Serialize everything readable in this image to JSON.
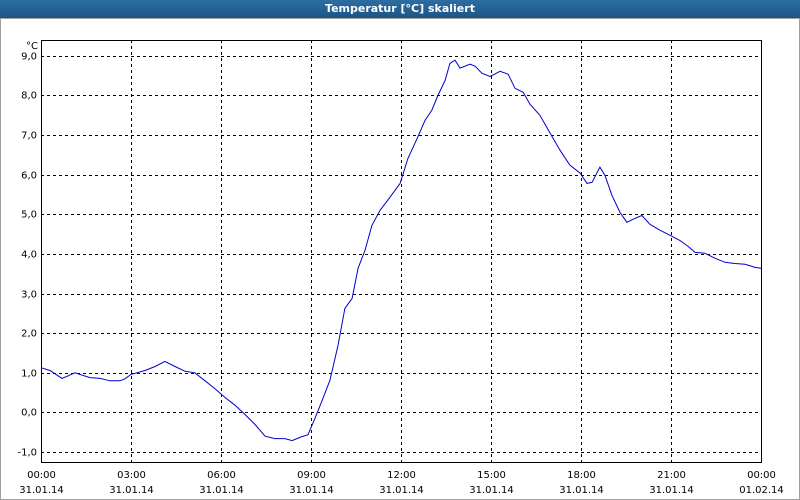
{
  "chart_data": {
    "type": "line",
    "title": "Temperatur [°C] skaliert",
    "y_unit": "°C",
    "ylim": [
      -1.25,
      9.4
    ],
    "yticks": [
      {
        "value": -1,
        "label": "-1,0"
      },
      {
        "value": 0,
        "label": "0,0"
      },
      {
        "value": 1,
        "label": "1,0"
      },
      {
        "value": 2,
        "label": "2,0"
      },
      {
        "value": 3,
        "label": "3,0"
      },
      {
        "value": 4,
        "label": "4,0"
      },
      {
        "value": 5,
        "label": "5,0"
      },
      {
        "value": 6,
        "label": "6,0"
      },
      {
        "value": 7,
        "label": "7,0"
      },
      {
        "value": 8,
        "label": "8,0"
      },
      {
        "value": 9,
        "label": "9,0"
      }
    ],
    "xlim": [
      0,
      24
    ],
    "xticks": [
      {
        "value": 0,
        "label": "00:00",
        "date": "31.01.14"
      },
      {
        "value": 3,
        "label": "03:00",
        "date": "31.01.14"
      },
      {
        "value": 6,
        "label": "06:00",
        "date": "31.01.14"
      },
      {
        "value": 9,
        "label": "09:00",
        "date": "31.01.14"
      },
      {
        "value": 12,
        "label": "12:00",
        "date": "31.01.14"
      },
      {
        "value": 15,
        "label": "15:00",
        "date": "31.01.14"
      },
      {
        "value": 18,
        "label": "18:00",
        "date": "31.01.14"
      },
      {
        "value": 21,
        "label": "21:00",
        "date": "31.01.14"
      },
      {
        "value": 24,
        "label": "00:00",
        "date": "01.02.14"
      }
    ],
    "grid": true,
    "series": [
      {
        "color": "#0000cc",
        "x": [
          0,
          0.3,
          0.7,
          0.83,
          1.13,
          1.63,
          1.97,
          2.3,
          2.63,
          2.8,
          3.0,
          3.47,
          3.8,
          4.13,
          4.47,
          4.8,
          5.13,
          5.47,
          5.8,
          6.13,
          6.47,
          6.8,
          7.13,
          7.47,
          7.8,
          8.13,
          8.37,
          8.63,
          8.9,
          9.13,
          9.37,
          9.63,
          9.9,
          10.13,
          10.37,
          10.57,
          10.8,
          11.03,
          11.3,
          11.63,
          11.97,
          12.23,
          12.57,
          12.8,
          13.03,
          13.23,
          13.47,
          13.63,
          13.8,
          13.97,
          14.3,
          14.47,
          14.7,
          14.97,
          15.13,
          15.3,
          15.57,
          15.8,
          16.07,
          16.3,
          16.63,
          16.97,
          17.3,
          17.63,
          17.97,
          18.2,
          18.37,
          18.63,
          18.8,
          19.03,
          19.3,
          19.53,
          19.8,
          20.03,
          20.3,
          20.63,
          20.97,
          21.3,
          21.57,
          21.8,
          22.13,
          22.47,
          22.8,
          23.13,
          23.47,
          23.8,
          24
        ],
        "values": [
          1.13,
          1.06,
          0.86,
          0.9,
          1.0,
          0.88,
          0.86,
          0.8,
          0.8,
          0.85,
          0.96,
          1.06,
          1.16,
          1.29,
          1.16,
          1.04,
          1.0,
          0.8,
          0.6,
          0.38,
          0.18,
          -0.05,
          -0.3,
          -0.6,
          -0.66,
          -0.66,
          -0.71,
          -0.63,
          -0.56,
          -0.15,
          0.3,
          0.81,
          1.69,
          2.63,
          2.88,
          3.64,
          4.09,
          4.72,
          5.1,
          5.43,
          5.78,
          6.41,
          6.97,
          7.37,
          7.63,
          8.0,
          8.38,
          8.81,
          8.89,
          8.69,
          8.79,
          8.74,
          8.56,
          8.48,
          8.54,
          8.61,
          8.54,
          8.18,
          8.08,
          7.78,
          7.5,
          7.05,
          6.62,
          6.24,
          6.04,
          5.78,
          5.81,
          6.19,
          5.98,
          5.48,
          5.05,
          4.8,
          4.9,
          4.97,
          4.75,
          4.6,
          4.47,
          4.34,
          4.19,
          4.04,
          4.02,
          3.89,
          3.79,
          3.76,
          3.74,
          3.66,
          3.64
        ]
      }
    ]
  }
}
